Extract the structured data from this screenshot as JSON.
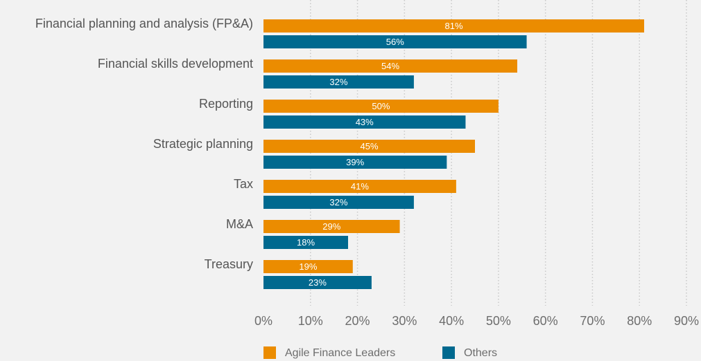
{
  "chart_data": {
    "type": "hbar",
    "categories": [
      "Financial planning and analysis (FP&A)",
      "Financial skills development",
      "Reporting",
      "Strategic planning",
      "Tax",
      "M&A",
      "Treasury"
    ],
    "series": [
      {
        "name": "Agile Finance Leaders",
        "color": "#eb8c00",
        "values": [
          81,
          54,
          50,
          45,
          41,
          29,
          19
        ],
        "value_labels": [
          "81%",
          "54%",
          "50%",
          "45%",
          "41%",
          "29%",
          "19%"
        ]
      },
      {
        "name": "Others",
        "color": "#00698f",
        "values": [
          56,
          32,
          43,
          39,
          32,
          18,
          23
        ],
        "value_labels": [
          "56%",
          "32%",
          "43%",
          "39%",
          "32%",
          "18%",
          "23%"
        ]
      }
    ],
    "xlim": [
      0,
      90
    ],
    "xticks": [
      {
        "value": 0,
        "label": "0%"
      },
      {
        "value": 10,
        "label": "10%"
      },
      {
        "value": 20,
        "label": "20%"
      },
      {
        "value": 30,
        "label": "30%"
      },
      {
        "value": 40,
        "label": "40%"
      },
      {
        "value": 50,
        "label": "50%"
      },
      {
        "value": 60,
        "label": "60%"
      },
      {
        "value": 70,
        "label": "70%"
      },
      {
        "value": 80,
        "label": "80%"
      },
      {
        "value": 90,
        "label": "90%"
      }
    ],
    "grid": true
  }
}
